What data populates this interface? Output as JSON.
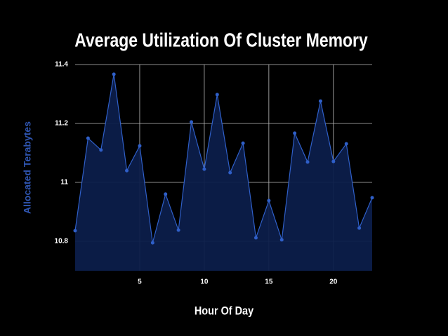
{
  "chart_data": {
    "type": "area",
    "title": "Average Utilization Of Cluster Memory",
    "x_label": "Hour Of Day",
    "y_label": "Allocated Terabytes",
    "x": [
      0,
      1,
      2,
      3,
      4,
      5,
      6,
      7,
      8,
      9,
      10,
      11,
      12,
      13,
      14,
      15,
      16,
      17,
      18,
      19,
      20,
      21,
      22,
      23
    ],
    "series": [
      {
        "name": "Allocated Terabytes",
        "color": "#2f5fc8",
        "values": [
          10.836,
          11.15,
          11.11,
          11.367,
          11.04,
          11.124,
          10.795,
          10.96,
          10.838,
          11.205,
          11.045,
          11.298,
          11.033,
          11.133,
          10.812,
          10.938,
          10.805,
          11.167,
          11.069,
          11.276,
          11.071,
          11.131,
          10.845,
          10.948
        ]
      }
    ],
    "xlim": [
      0,
      23
    ],
    "xticks": [
      5,
      10,
      15,
      20
    ],
    "ylim": [
      10.7,
      11.4
    ],
    "yticks": [
      10.8,
      11,
      11.2,
      11.4
    ],
    "grid": true
  }
}
